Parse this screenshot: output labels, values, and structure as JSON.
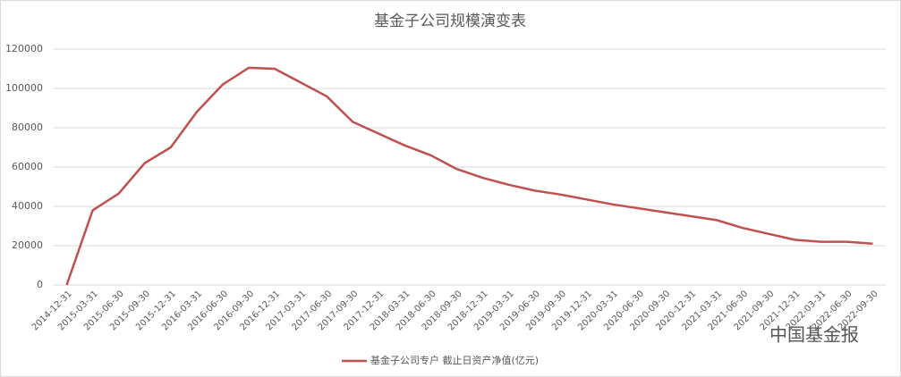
{
  "chart_data": {
    "type": "line",
    "title": "基金子公司规模演变表",
    "categories": [
      "2014-12-31",
      "2015-03-31",
      "2015-06-30",
      "2015-09-30",
      "2015-12-31",
      "2016-03-31",
      "2016-06-30",
      "2016-09-30",
      "2016-12-31",
      "2017-03-31",
      "2017-06-30",
      "2017-09-30",
      "2017-12-31",
      "2018-03-31",
      "2018-06-30",
      "2018-09-30",
      "2018-12-31",
      "2019-03-31",
      "2019-06-30",
      "2019-09-30",
      "2019-12-31",
      "2020-03-31",
      "2020-06-30",
      "2020-09-30",
      "2020-12-31",
      "2021-03-31",
      "2021-06-30",
      "2021-09-30",
      "2021-12-31",
      "2022-03-31",
      "2022-06-30",
      "2022-09-30"
    ],
    "series": [
      {
        "name": "基金子公司专户 截止日资产净值(亿元)",
        "color": "#c0504d",
        "values": [
          0,
          38000,
          46500,
          62000,
          70000,
          88000,
          102000,
          110500,
          110000,
          103000,
          96000,
          83000,
          77000,
          71000,
          66000,
          59000,
          54500,
          51000,
          48000,
          46000,
          43500,
          41000,
          39000,
          37000,
          35000,
          33000,
          29000,
          26000,
          23000,
          22000,
          22000,
          21000
        ]
      }
    ],
    "ylim": [
      0,
      120000
    ],
    "yticks": [
      0,
      20000,
      40000,
      60000,
      80000,
      100000,
      120000
    ],
    "grid": true,
    "legend": "bottom",
    "watermark": "中国基金报"
  }
}
